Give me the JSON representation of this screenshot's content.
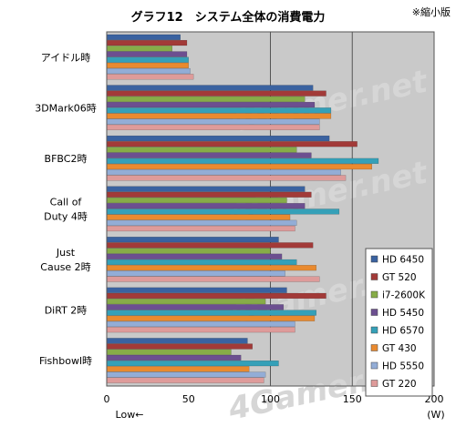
{
  "chart_data": {
    "type": "bar",
    "orientation": "horizontal",
    "title": "グラフ12　システム全体の消費電力",
    "note": "※縮小版",
    "xlabel_left": "Low←",
    "xlabel_right": "(W)",
    "xlim": [
      0,
      200
    ],
    "xticks": [
      0,
      50,
      100,
      150,
      200
    ],
    "grid_lines": [
      100,
      150
    ],
    "legend_position": "bottom-right",
    "watermark": "4Gamer.net",
    "categories": [
      [
        "アイドル時"
      ],
      [
        "3DMark06時"
      ],
      [
        "BFBC2時"
      ],
      [
        "Call of",
        "Duty 4時"
      ],
      [
        "Just",
        "Cause 2時"
      ],
      [
        "DiRT 2時"
      ],
      [
        "Fishbowl時"
      ]
    ],
    "series": [
      {
        "name": "HD 6450",
        "color": "#3a62a0",
        "values": [
          45,
          126,
          136,
          121,
          105,
          110,
          86
        ]
      },
      {
        "name": "GT 520",
        "color": "#a23a38",
        "values": [
          49,
          134,
          153,
          125,
          126,
          134,
          89
        ]
      },
      {
        "name": "i7-2600K",
        "color": "#87ac48",
        "values": [
          40,
          121,
          116,
          110,
          100,
          97,
          76
        ]
      },
      {
        "name": "HD 5450",
        "color": "#6c4f90",
        "values": [
          49,
          127,
          125,
          121,
          107,
          108,
          82
        ]
      },
      {
        "name": "HD 6570",
        "color": "#35a0b8",
        "values": [
          50,
          137,
          166,
          142,
          116,
          128,
          105
        ]
      },
      {
        "name": "GT 430",
        "color": "#e98a2f",
        "values": [
          50,
          137,
          162,
          112,
          128,
          127,
          87
        ]
      },
      {
        "name": "HD 5550",
        "color": "#93add6",
        "values": [
          51,
          130,
          143,
          116,
          109,
          115,
          97
        ]
      },
      {
        "name": "GT 220",
        "color": "#de9b9a",
        "values": [
          53,
          130,
          146,
          115,
          130,
          115,
          96
        ]
      }
    ]
  }
}
